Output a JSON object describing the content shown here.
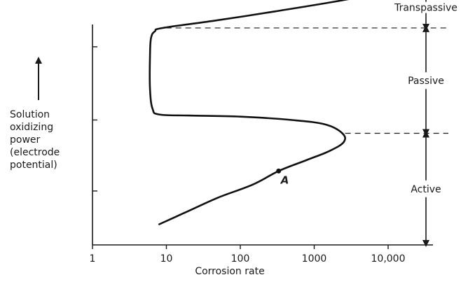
{
  "chart_data": {
    "type": "line",
    "title": "",
    "xlabel": "Corrosion rate",
    "ylabel_lines": [
      "Solution",
      "oxidizing",
      "power",
      "(electrode",
      "potential)"
    ],
    "x_scale": "log",
    "xlim": [
      1,
      30000
    ],
    "ylim": [
      0,
      10
    ],
    "x_ticks": [
      {
        "value": 1,
        "label": "1"
      },
      {
        "value": 10,
        "label": "10"
      },
      {
        "value": 100,
        "label": "100"
      },
      {
        "value": 1000,
        "label": "1000"
      },
      {
        "value": 10000,
        "label": "10,000"
      }
    ],
    "y_ticks": [
      2.4,
      5.6,
      8.9
    ],
    "grid": false,
    "series": [
      {
        "points": [
          [
            8,
            0.9
          ],
          [
            20,
            1.5
          ],
          [
            50,
            2.1
          ],
          [
            150,
            2.7
          ],
          [
            330,
            3.3
          ],
          [
            800,
            3.8
          ],
          [
            1600,
            4.2
          ],
          [
            2500,
            4.6
          ],
          [
            2400,
            5.0
          ],
          [
            1400,
            5.4
          ],
          [
            500,
            5.6
          ],
          [
            100,
            5.75
          ],
          [
            20,
            5.8
          ],
          [
            8,
            5.85
          ],
          [
            6.5,
            6.1
          ],
          [
            6,
            7.0
          ],
          [
            6,
            8.5
          ],
          [
            6.2,
            9.3
          ],
          [
            7,
            9.6
          ],
          [
            9,
            9.75
          ],
          [
            50,
            10.1
          ],
          [
            300,
            10.5
          ],
          [
            2000,
            10.95
          ],
          [
            10000,
            11.4
          ],
          [
            25000,
            11.8
          ]
        ]
      }
    ],
    "point_annotation": {
      "label": "A",
      "x": 330,
      "y": 3.3
    },
    "boundaries": [
      {
        "y": 9.75,
        "from_x": 9
      },
      {
        "y": 5.0,
        "from_x": 2400
      }
    ],
    "regions": [
      {
        "label": "Transpassive",
        "y_from": 9.75,
        "y_to": 11.6
      },
      {
        "label": "Passive",
        "y_from": 5.0,
        "y_to": 9.75
      },
      {
        "label": "Active",
        "y_from": 0.0,
        "y_to": 5.0
      }
    ]
  }
}
